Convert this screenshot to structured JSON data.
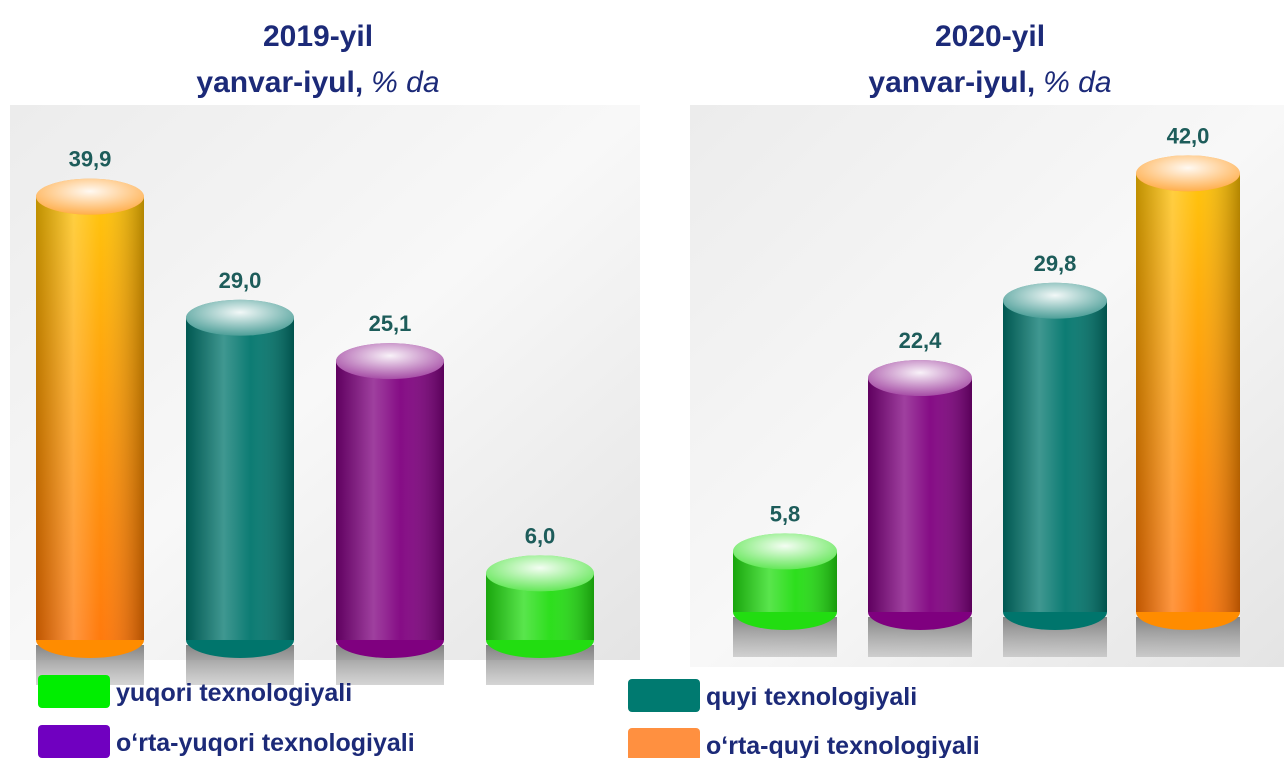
{
  "chart_data": [
    {
      "type": "bar",
      "title": "2019-yil",
      "subtitle": "yanvar-iyul,",
      "unit": "% da",
      "values": [
        39.9,
        29.0,
        25.1,
        6.0
      ],
      "value_labels": [
        "39,9",
        "29,0",
        "25,1",
        "6,0"
      ],
      "colors": [
        "#ff8c00",
        "#00756c",
        "#7f007f",
        "#22dd11"
      ],
      "ylim": [
        0,
        45
      ]
    },
    {
      "type": "bar",
      "title": "2020-yil",
      "subtitle": "yanvar-iyul,",
      "unit": "% da",
      "values": [
        5.8,
        22.4,
        29.8,
        42.0
      ],
      "value_labels": [
        "5,8",
        "22,4",
        "29,8",
        "42,0"
      ],
      "colors": [
        "#22dd11",
        "#7f007f",
        "#00756c",
        "#ff8c00"
      ],
      "ylim": [
        0,
        45
      ]
    }
  ],
  "legend": [
    {
      "name": "yuqori texnologiyali",
      "color": "#00ee00"
    },
    {
      "name": "o‘rta-yuqori texnologiyali",
      "color": "#7000c0"
    },
    {
      "name": "quyi texnologiyali",
      "color": "#007a70"
    },
    {
      "name": "o‘rta-quyi texnologiyali",
      "color": "#ff9040"
    }
  ]
}
